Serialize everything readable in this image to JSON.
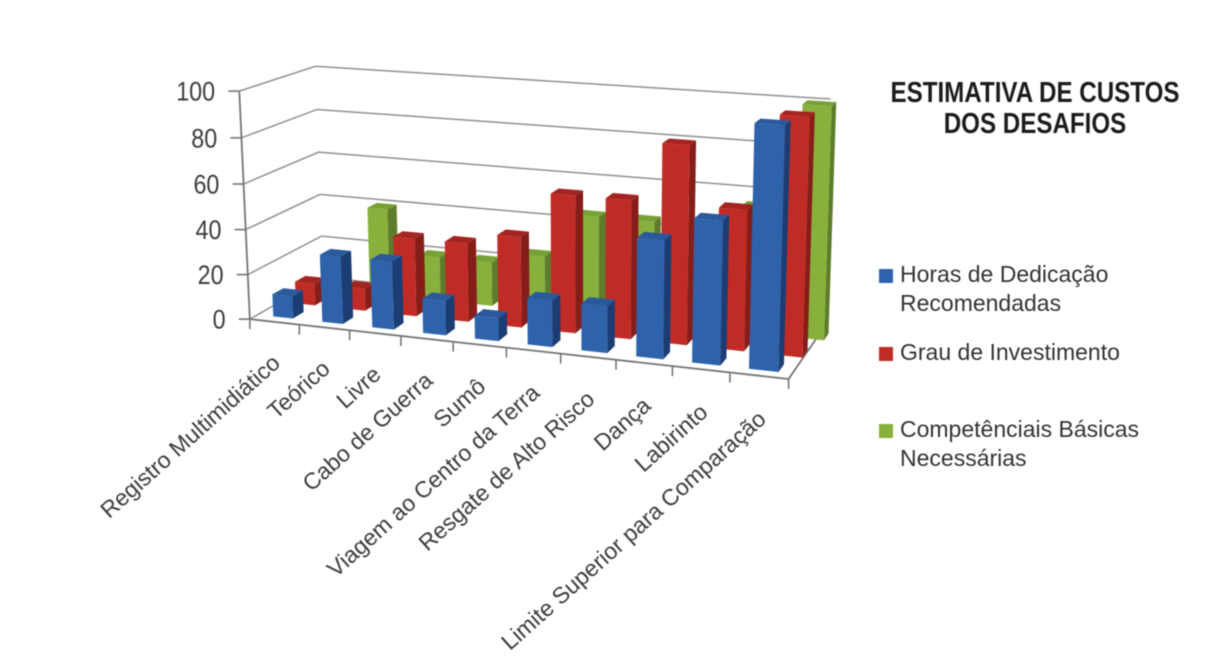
{
  "title": {
    "line1": "ESTIMATIVA DE CUSTOS",
    "line2": "DOS DESAFIOS"
  },
  "chart_data": {
    "type": "bar",
    "subtype": "3d-column",
    "title": "ESTIMATIVA DE CUSTOS DOS DESAFIOS",
    "categories": [
      "Registro Multimidiático",
      "Teórico",
      "Livre",
      "Cabo de Guerra",
      "Sumô",
      "Viagem ao Centro da Terra",
      "Resgate de Alto Risco",
      "Dança",
      "Labirinto",
      "Limite Superior para Comparação"
    ],
    "series": [
      {
        "name": "Horas de Dedicação Recomendadas",
        "color": "#2e63ab",
        "values": [
          10,
          30,
          30,
          15,
          10,
          20,
          20,
          50,
          60,
          100
        ]
      },
      {
        "name": "Grau de Investimento",
        "color": "#c12b25",
        "values": [
          10,
          10,
          35,
          35,
          40,
          60,
          60,
          85,
          60,
          100
        ]
      },
      {
        "name": "Competênciais Básicas Necessárias",
        "color": "#87b03c",
        "values": [
          15,
          40,
          20,
          20,
          25,
          45,
          45,
          30,
          55,
          100
        ]
      }
    ],
    "ylabel": "",
    "xlabel": "",
    "ylim": [
      0,
      100
    ],
    "yticks": [
      0,
      20,
      40,
      60,
      80,
      100
    ],
    "grid": true,
    "legend_position": "right"
  },
  "legend": {
    "items": [
      {
        "label": "Horas de Dedicação Recomendadas",
        "color": "#2e63ab"
      },
      {
        "label": "Grau de Investimento",
        "color": "#c12b25"
      },
      {
        "label": "Competênciais Básicas Necessárias",
        "color": "#87b03c"
      }
    ]
  }
}
